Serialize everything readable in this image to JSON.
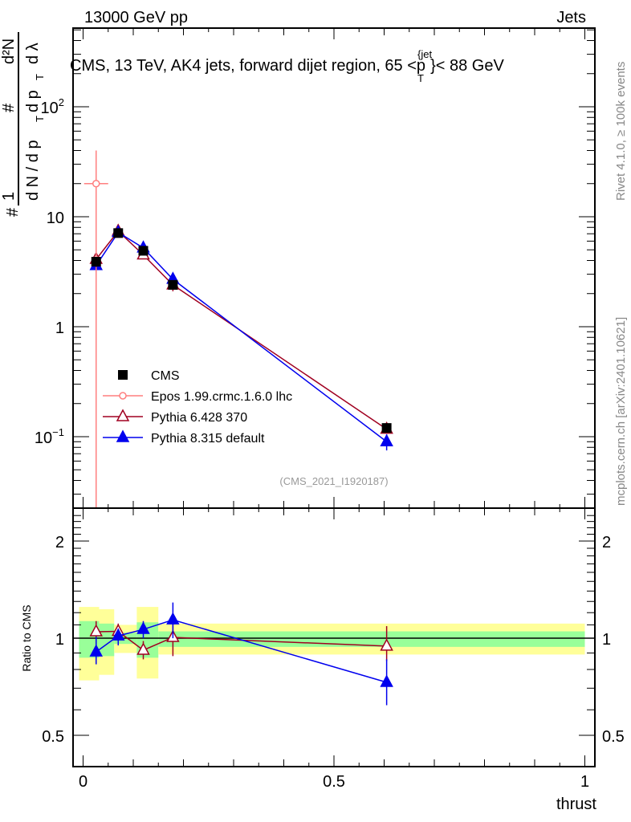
{
  "chart_data": {
    "type": "line",
    "header_left": "13000 GeV pp",
    "header_right": "Jets",
    "title": "CMS, 13 TeV, AK4 jets, forward dijet region, 65 <p",
    "title_sub": "T",
    "title_sup": "{jet",
    "title_end": "}< 88 GeV",
    "ylabel": "1/N dN/dpT d²N/dpT dλ",
    "ylabel_parts": {
      "hash": "#",
      "one": "1",
      "dn": "d N / d p",
      "t1": "T",
      "hash2": "#",
      "dp": "d p",
      "t2": "T",
      "d2n": "d²N",
      "dl": "d λ"
    },
    "xlabel": "thrust",
    "ratio_ylabel": "Ratio to CMS",
    "side_text_1": "Rivet 4.1.0, ≥ 100k events",
    "side_text_2": "mcplots.cern.ch [arXiv:2401.10621]",
    "analysis": "(CMS_2021_I1920187)",
    "xlim": [
      -0.02,
      1.02
    ],
    "ylim": [
      0.0224,
      519
    ],
    "yscale": "log",
    "ratio_ylim": [
      0.4,
      2.53
    ],
    "xticks": [
      {
        "v": 0,
        "label": "0"
      },
      {
        "v": 0.5,
        "label": "0.5"
      },
      {
        "v": 1,
        "label": "1"
      }
    ],
    "yticks": [
      {
        "v": 100,
        "base": "10",
        "exp": "2"
      },
      {
        "v": 10,
        "base": "10",
        "exp": ""
      },
      {
        "v": 1,
        "base": "1",
        "exp": ""
      },
      {
        "v": 0.1,
        "base": "10",
        "exp": "−1"
      }
    ],
    "ratio_yticks": [
      {
        "v": 2,
        "label": "2"
      },
      {
        "v": 1,
        "label": "1"
      },
      {
        "v": 0.5,
        "label": "0.5"
      }
    ],
    "legend_position": "lower-left",
    "series": [
      {
        "name": "CMS",
        "color": "#000000",
        "marker": "square",
        "x": [
          0.026,
          0.07,
          0.12,
          0.179,
          0.605
        ],
        "y": [
          3.9,
          7.1,
          4.9,
          2.4,
          0.12
        ],
        "ylo": [
          3.5,
          6.6,
          4.6,
          2.2,
          0.11
        ],
        "yhi": [
          4.3,
          7.6,
          5.2,
          2.6,
          0.13
        ]
      },
      {
        "name": "Epos 1.99.crmc.1.6.0 lhc",
        "color": "#ff7f7f",
        "marker": "open-cross",
        "x": [
          0.026
        ],
        "xerr": [
          0.024
        ],
        "y": [
          20
        ],
        "ylo": [
          0.02
        ],
        "yhi": [
          40
        ]
      },
      {
        "name": "Pythia 6.428 370",
        "color": "#a00020",
        "marker": "open-triangle",
        "x": [
          0.026,
          0.07,
          0.12,
          0.179,
          0.605
        ],
        "y": [
          4.1,
          7.4,
          4.5,
          2.4,
          0.117
        ],
        "ylo": [
          3.8,
          7.0,
          4.2,
          2.1,
          0.108
        ],
        "yhi": [
          4.4,
          7.8,
          4.8,
          2.7,
          0.126
        ],
        "ratio": [
          1.047,
          1.05,
          0.918,
          1.006,
          0.945
        ],
        "ratio_lo": [
          0.98,
          0.99,
          0.86,
          0.88,
          0.85
        ],
        "ratio_hi": [
          1.13,
          1.11,
          0.98,
          1.12,
          1.09
        ]
      },
      {
        "name": "Pythia 8.315 default",
        "color": "#0000ee",
        "marker": "filled-triangle",
        "x": [
          0.026,
          0.07,
          0.12,
          0.179,
          0.605
        ],
        "y": [
          3.6,
          7.2,
          5.2,
          2.7,
          0.09
        ],
        "ylo": [
          3.3,
          6.8,
          4.9,
          2.4,
          0.075
        ],
        "yhi": [
          3.9,
          7.6,
          5.5,
          3.0,
          0.105
        ],
        "ratio": [
          0.907,
          1.017,
          1.065,
          1.14,
          0.73
        ],
        "ratio_lo": [
          0.83,
          0.95,
          1.0,
          1.0,
          0.62
        ],
        "ratio_hi": [
          1.01,
          1.07,
          1.13,
          1.29,
          0.86
        ]
      }
    ],
    "ratio_bands": [
      {
        "x0": -0.008,
        "x1": 0.032,
        "y_lo": 0.74,
        "y_hi": 1.25,
        "g_lo": 0.87,
        "g_hi": 1.13
      },
      {
        "x0": 0.032,
        "x1": 0.062,
        "y_lo": 0.77,
        "y_hi": 1.23,
        "g_lo": 0.88,
        "g_hi": 1.11
      },
      {
        "x0": 0.062,
        "x1": 0.107,
        "y_lo": 0.9,
        "y_hi": 1.1,
        "g_lo": 0.96,
        "g_hi": 1.04
      },
      {
        "x0": 0.107,
        "x1": 0.15,
        "y_lo": 0.75,
        "y_hi": 1.25,
        "g_lo": 0.87,
        "g_hi": 1.12
      },
      {
        "x0": 0.15,
        "x1": 1.0,
        "y_lo": 0.89,
        "y_hi": 1.11,
        "g_lo": 0.94,
        "g_hi": 1.05
      }
    ],
    "band_colors": {
      "yellow": "#ffff99",
      "green": "#99ff99"
    }
  }
}
